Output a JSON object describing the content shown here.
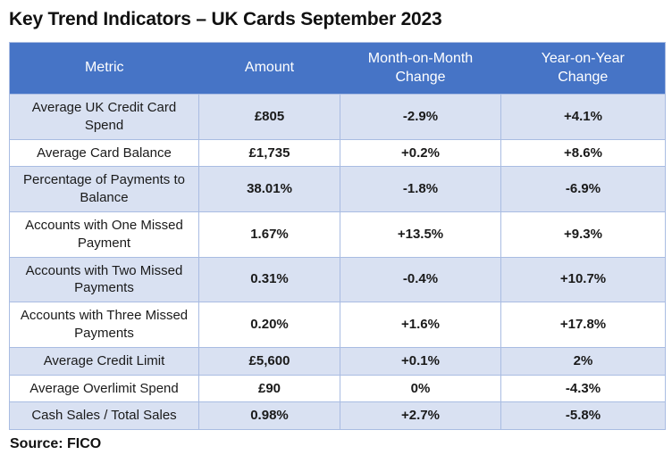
{
  "title": "Key Trend Indicators – UK Cards September 2023",
  "source_note": "Source: FICO",
  "colors": {
    "header_bg": "#4674C6",
    "header_text": "#FFFFFF",
    "row_alt_bg": "#D9E1F2",
    "row_bg": "#FFFFFF",
    "border": "#A9BCE2",
    "title_text": "#111111",
    "body_text": "#1A1A1A"
  },
  "chart_data": {
    "type": "table",
    "title": "Key Trend Indicators – UK Cards September 2023",
    "columns": [
      "Metric",
      "Amount",
      "Month-on-Month\nChange",
      "Year-on-Year\nChange"
    ],
    "rows": [
      [
        "Average UK Credit Card Spend",
        "£805",
        "-2.9%",
        "+4.1%"
      ],
      [
        "Average Card Balance",
        "£1,735",
        "+0.2%",
        "+8.6%"
      ],
      [
        "Percentage of Payments to Balance",
        "38.01%",
        "-1.8%",
        "-6.9%"
      ],
      [
        "Accounts with One Missed Payment",
        "1.67%",
        "+13.5%",
        "+9.3%"
      ],
      [
        "Accounts with Two Missed Payments",
        "0.31%",
        "-0.4%",
        "+10.7%"
      ],
      [
        "Accounts with Three Missed Payments",
        "0.20%",
        "+1.6%",
        "+17.8%"
      ],
      [
        "Average Credit Limit",
        "£5,600",
        "+0.1%",
        "2%"
      ],
      [
        "Average Overlimit Spend",
        "£90",
        "0%",
        "-4.3%"
      ],
      [
        "Cash Sales / Total Sales",
        "0.98%",
        "+2.7%",
        "-5.8%"
      ]
    ],
    "source": "Source: FICO"
  }
}
